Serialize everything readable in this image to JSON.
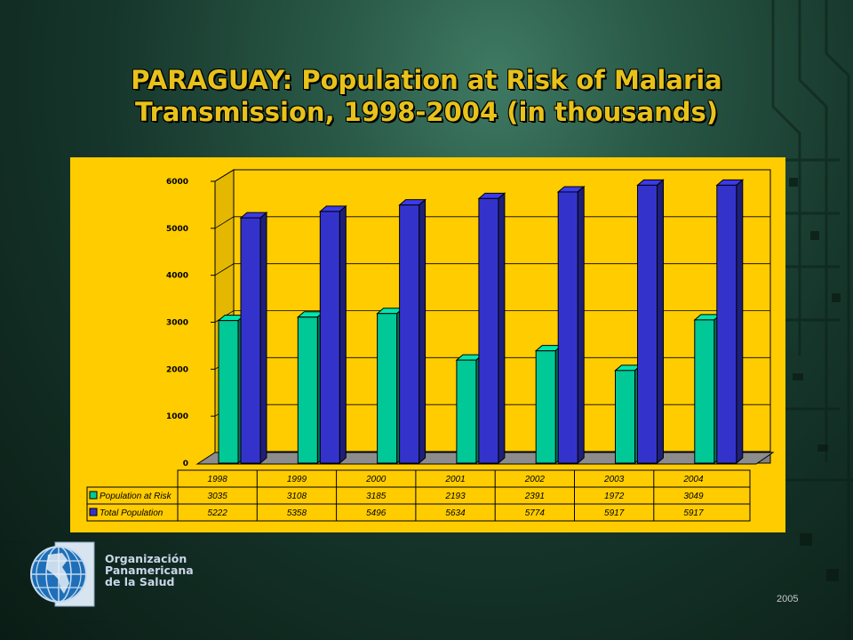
{
  "slide": {
    "title_line1": "PARAGUAY: Population at Risk of Malaria",
    "title_line2": "Transmission, 1998-2004 (in thousands)",
    "org_line1": "Organización",
    "org_line2": "Panamericana",
    "org_line3": "de la Salud",
    "year_note": "2005"
  },
  "chart_data": {
    "type": "bar",
    "categories": [
      "1998",
      "1999",
      "2000",
      "2001",
      "2002",
      "2003",
      "2004"
    ],
    "series": [
      {
        "name": "Population at Risk",
        "values": [
          3035,
          3108,
          3185,
          2193,
          2391,
          1972,
          3049
        ],
        "color": "#00c896"
      },
      {
        "name": "Total Population",
        "values": [
          5222,
          5358,
          5496,
          5634,
          5774,
          5917,
          5917
        ],
        "color": "#3333cc"
      }
    ],
    "ylim": [
      0,
      6000
    ],
    "yticks": [
      "0",
      "1000",
      "2000",
      "3000",
      "4000",
      "5000",
      "6000"
    ],
    "grid": true,
    "legend": "data table below chart",
    "background": "#ffcc00"
  }
}
